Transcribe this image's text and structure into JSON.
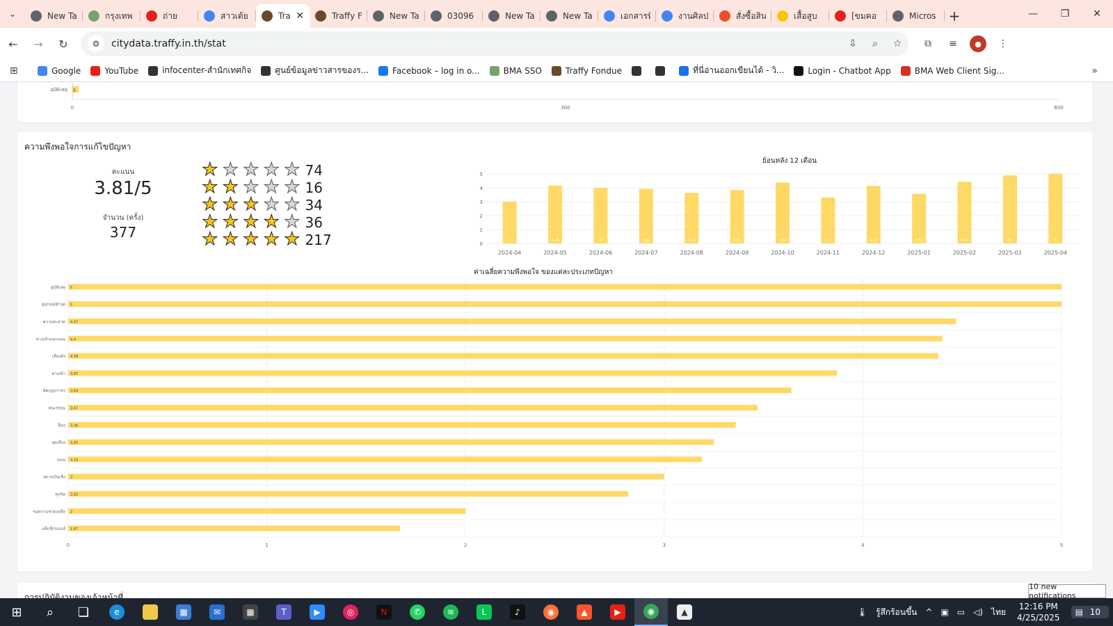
{
  "browser": {
    "tabs": [
      {
        "title": "New Ta",
        "color": "#5f6368"
      },
      {
        "title": "กรุงเทพ",
        "color": "#7aa36b"
      },
      {
        "title": "ถ่าย",
        "color": "#e62117"
      },
      {
        "title": "สาวเต้ย",
        "color": "#4285f4"
      },
      {
        "title": "Tra",
        "color": "#6b4a2b",
        "active": true
      },
      {
        "title": "Traffy F",
        "color": "#6b4a2b"
      },
      {
        "title": "New Ta",
        "color": "#5f6368"
      },
      {
        "title": "03096",
        "color": "#5f6368"
      },
      {
        "title": "New Ta",
        "color": "#5f6368"
      },
      {
        "title": "New Ta",
        "color": "#5f6368"
      },
      {
        "title": "เอกสารที่",
        "color": "#4285f4"
      },
      {
        "title": "งานศิลป",
        "color": "#4285f4"
      },
      {
        "title": "สั่งซื้อสิน",
        "color": "#ee4d2d"
      },
      {
        "title": "เสื้อสูบ",
        "color": "#f7c600"
      },
      {
        "title": "[ขมคอ",
        "color": "#e62117"
      },
      {
        "title": "Micros",
        "color": "#5f6368"
      }
    ],
    "url": "citydata.traffy.in.th/stat",
    "bookmarks": [
      {
        "label": "Google",
        "color": "#4285f4"
      },
      {
        "label": "YouTube",
        "color": "#e62117"
      },
      {
        "label": "infocenter-สำนักเทศกิจ",
        "color": "#333333"
      },
      {
        "label": "ศูนย์ข้อมูลข่าวสารของร...",
        "color": "#333333"
      },
      {
        "label": "Facebook – log in o...",
        "color": "#1877f2"
      },
      {
        "label": "BMA SSO",
        "color": "#7aa36b"
      },
      {
        "label": "Traffy Fondue",
        "color": "#6b4a2b"
      },
      {
        "label": "",
        "color": "#333333"
      },
      {
        "label": "",
        "color": "#333333"
      },
      {
        "label": "ที่นี่อ่านออกเขียนได้ - วิ...",
        "color": "#1a73e8"
      },
      {
        "label": "Login - Chatbot App",
        "color": "#111111"
      },
      {
        "label": "BMA Web Client Sig...",
        "color": "#d93025"
      }
    ]
  },
  "top_chart": {
    "category": "อุบัติเหตุ",
    "bar_label": "5",
    "ticks": [
      "0",
      "300",
      "600"
    ]
  },
  "satisfaction": {
    "title": "ความพึงพอใจการแก้ไขปัญหา",
    "score_label": "คะแนน",
    "score": "3.81/5",
    "count_label": "จำนวน (ครั้ง)",
    "count": "377",
    "ratings": [
      {
        "stars": 1,
        "count": "74"
      },
      {
        "stars": 2,
        "count": "16"
      },
      {
        "stars": 3,
        "count": "34"
      },
      {
        "stars": 4,
        "count": "36"
      },
      {
        "stars": 5,
        "count": "217"
      }
    ]
  },
  "bottom_section": {
    "title": "การปฏิบัติงานของเจ้าหน้าที่"
  },
  "chart_data": [
    {
      "type": "bar",
      "title": "ย้อนหลัง 12 เดือน",
      "categories": [
        "2024-04",
        "2024-05",
        "2024-06",
        "2024-07",
        "2024-08",
        "2024-09",
        "2024-10",
        "2024-11",
        "2024-12",
        "2025-01",
        "2025-02",
        "2025-03",
        "2025-04"
      ],
      "values": [
        3,
        4.15,
        4,
        3.92,
        3.63,
        3.83,
        4.38,
        3.3,
        4.14,
        3.57,
        4.43,
        4.9,
        5
      ],
      "ylim": [
        0,
        5
      ],
      "yticks": [
        "0",
        "1",
        "2",
        "3",
        "4",
        "5"
      ],
      "color": "#ffd966"
    },
    {
      "type": "bar",
      "orientation": "horizontal",
      "title": "ค่าเฉลี่ยความพึงพอใจ ของแต่ละประเภทปัญหา",
      "categories": [
        "อุบัติเหตุ",
        "อุปกรณ์ชำรุด",
        "ความสะอาด",
        "ทางเท้าและถนน",
        "เสียงดัง",
        "ทางเท้า",
        "ผิดกฎจราจร",
        "คนเร่ร่อน",
        "อื่นๆ",
        "จุดเสี่ยง",
        "ถนน",
        "สถานบันเทิง",
        "ทุจริต",
        "ขอความช่วยเหลือ",
        "แท็กซี่/รถเมล์"
      ],
      "values": [
        5,
        5,
        4.47,
        4.4,
        4.38,
        3.87,
        3.64,
        3.47,
        3.36,
        3.25,
        3.19,
        3,
        2.82,
        2,
        1.67
      ],
      "value_labels": [
        "5",
        "5",
        "4.47",
        "4.4",
        "4.38",
        "3.87",
        "3.64",
        "3.47",
        "3.36",
        "3.25",
        "3.19",
        "3",
        "2.82",
        "2",
        "1.67"
      ],
      "xlim": [
        0,
        5
      ],
      "xticks": [
        "0",
        "1",
        "2",
        "3",
        "4",
        "5"
      ],
      "color": "#ffd966"
    }
  ],
  "taskbar": {
    "weather": "รู้สึกร้อนขึ้น",
    "lang": "ไทย",
    "time": "12:16 PM",
    "date": "4/25/2025",
    "notifications": "10",
    "toast": "10 new notifications"
  }
}
